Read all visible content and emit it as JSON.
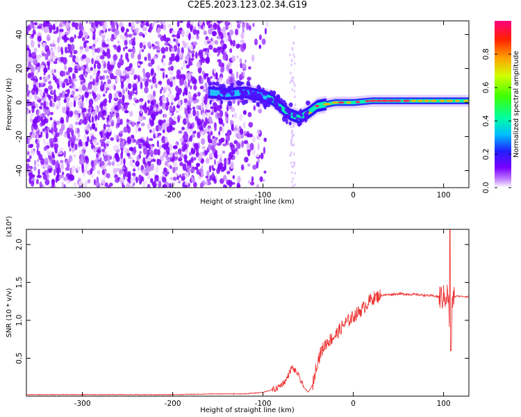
{
  "title": "C2E5.2023.123.02.34.G19",
  "chart_data": [
    {
      "type": "heatmap",
      "title": "C2E5.2023.123.02.34.G19",
      "xlabel": "Height of straight line (km)",
      "ylabel": "Frequency (Hz)",
      "xlim": [
        -362,
        128
      ],
      "ylim": [
        -50,
        48
      ],
      "xticks": [
        -300,
        -200,
        -100,
        0,
        100
      ],
      "yticks": [
        40,
        20,
        0,
        -20,
        -40
      ],
      "colorbar": {
        "label": "Normalized spectral amplitude",
        "range": [
          0.0,
          1.0
        ],
        "ticks": [
          0.0,
          0.2,
          0.4,
          0.6,
          0.8
        ],
        "tick_labels": [
          "0.0",
          "0.2",
          "0.4",
          "0.6",
          "0.8"
        ]
      },
      "ridge": {
        "x": [
          -160,
          -140,
          -120,
          -100,
          -90,
          -80,
          -70,
          -60,
          -50,
          -40,
          -30,
          -20,
          0,
          20,
          50,
          80,
          100,
          110,
          128
        ],
        "frequency": [
          6,
          5,
          6,
          4,
          2,
          -3,
          -7,
          -9,
          -6,
          -2,
          -1,
          0,
          0,
          1,
          1,
          1,
          1,
          1,
          1
        ]
      }
    },
    {
      "type": "line",
      "xlabel": "Height of straight line (km)",
      "ylabel": "SNR (10 * v/v)",
      "y_multiplier": "(x10⁴)",
      "xlim": [
        -362,
        128
      ],
      "ylim": [
        0.0,
        2.2
      ],
      "xticks": [
        -300,
        -200,
        -100,
        0,
        100
      ],
      "yticks": [
        2.0,
        1.5,
        1.0,
        0.5
      ],
      "ytick_labels": [
        "2.0",
        "1.5",
        "1.0",
        "0.5"
      ],
      "series": [
        {
          "name": "SNR",
          "color": "#ee3333",
          "x": [
            -362,
            -300,
            -250,
            -200,
            -150,
            -120,
            -100,
            -85,
            -75,
            -68,
            -62,
            -55,
            -50,
            -45,
            -40,
            -35,
            -30,
            -20,
            -10,
            0,
            10,
            20,
            30,
            50,
            70,
            90,
            100,
            105,
            108,
            110,
            115,
            128
          ],
          "y": [
            0.02,
            0.02,
            0.02,
            0.02,
            0.03,
            0.03,
            0.05,
            0.1,
            0.2,
            0.38,
            0.3,
            0.12,
            0.05,
            0.15,
            0.45,
            0.6,
            0.7,
            0.8,
            0.95,
            1.05,
            1.15,
            1.28,
            1.33,
            1.35,
            1.34,
            1.32,
            1.3,
            1.35,
            0.6,
            1.3,
            1.32,
            1.31
          ]
        }
      ]
    }
  ]
}
